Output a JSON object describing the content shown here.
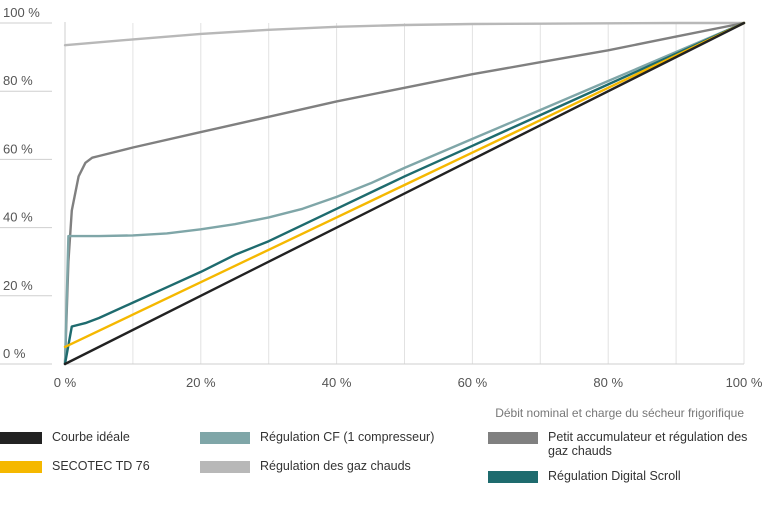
{
  "chart_data": {
    "type": "line",
    "title": "",
    "xlabel": "Débit nominal et charge du sécheur frigorifique",
    "ylabel": "",
    "xlim": [
      0,
      100
    ],
    "ylim": [
      0,
      100
    ],
    "grid": "vertical",
    "x_ticks": [
      "0 %",
      "20 %",
      "40 %",
      "60 %",
      "80 %",
      "100 %"
    ],
    "y_ticks": [
      "0 %",
      "20 %",
      "40 %",
      "60 %",
      "80 %",
      "100 %"
    ],
    "legend_position": "bottom",
    "series": [
      {
        "name": "Courbe idéale",
        "color": "#222222",
        "x": [
          0,
          100
        ],
        "y": [
          0,
          100
        ]
      },
      {
        "name": "SECOTEC TD 76",
        "color": "#f5b800",
        "x": [
          0,
          10,
          20,
          30,
          40,
          50,
          60,
          70,
          80,
          90,
          100
        ],
        "y": [
          5,
          14.5,
          24,
          33.5,
          43,
          52.5,
          62,
          71.5,
          81,
          90.5,
          100
        ]
      },
      {
        "name": "Régulation Digital Scroll",
        "color": "#1e6b6e",
        "x": [
          0,
          1,
          3,
          5,
          10,
          15,
          20,
          25,
          30,
          40,
          50,
          60,
          70,
          80,
          90,
          100
        ],
        "y": [
          0,
          11,
          12,
          13.5,
          18,
          22.5,
          27,
          32,
          36,
          45.5,
          55,
          64,
          73,
          82,
          91,
          100
        ]
      },
      {
        "name": "Régulation CF (1 compresseur)",
        "color": "#7fa6a8",
        "x": [
          0,
          0.5,
          5,
          10,
          15,
          20,
          25,
          30,
          35,
          40,
          45,
          50,
          60,
          70,
          80,
          90,
          100
        ],
        "y": [
          0,
          37.5,
          37.5,
          37.7,
          38.3,
          39.5,
          41,
          43,
          45.5,
          49,
          53,
          57.5,
          66,
          74.5,
          83,
          91.5,
          100
        ]
      },
      {
        "name": "Petit accumulateur et régulation des gaz chauds",
        "color": "#808080",
        "x": [
          0,
          0.5,
          1,
          2,
          3,
          4,
          5,
          10,
          20,
          30,
          40,
          50,
          60,
          70,
          80,
          90,
          100
        ],
        "y": [
          0,
          30,
          45,
          55,
          59,
          60.5,
          61,
          63.5,
          68,
          72.5,
          77,
          81,
          85,
          88.5,
          92,
          96,
          100
        ]
      },
      {
        "name": "Régulation des gaz chauds",
        "color": "#b8b8b8",
        "x": [
          0,
          10,
          20,
          30,
          40,
          50,
          60,
          70,
          80,
          90,
          100
        ],
        "y": [
          93.5,
          95.2,
          96.8,
          98,
          98.9,
          99.4,
          99.7,
          99.8,
          99.9,
          100,
          100
        ]
      }
    ]
  }
}
